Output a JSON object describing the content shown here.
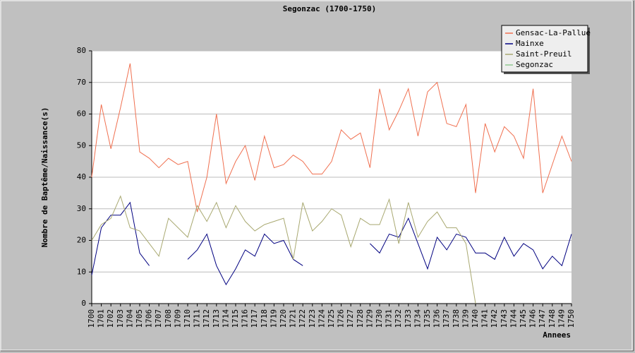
{
  "chart_data": {
    "type": "line",
    "title": "Segonzac (1700-1750)",
    "y_label": "Nombre de Baptême/Naissance(s)",
    "x_label": "Annees",
    "categories": [
      "1700",
      "1701",
      "1702",
      "1703",
      "1704",
      "1705",
      "1706",
      "1707",
      "1708",
      "1709",
      "1710",
      "1711",
      "1712",
      "1713",
      "1714",
      "1715",
      "1716",
      "1717",
      "1718",
      "1719",
      "1720",
      "1721",
      "1722",
      "1723",
      "1724",
      "1725",
      "1726",
      "1727",
      "1728",
      "1729",
      "1730",
      "1731",
      "1732",
      "1733",
      "1734",
      "1735",
      "1736",
      "1737",
      "1738",
      "1739",
      "1740",
      "1741",
      "1742",
      "1743",
      "1744",
      "1745",
      "1746",
      "1747",
      "1748",
      "1749",
      "1750"
    ],
    "series": [
      {
        "name": "Gensac-La-Pallue",
        "color": "#f07050",
        "values": [
          40,
          63,
          49,
          62,
          76,
          48,
          46,
          43,
          46,
          44,
          45,
          29,
          40,
          60,
          38,
          45,
          50,
          39,
          53,
          43,
          44,
          47,
          45,
          41,
          41,
          45,
          55,
          52,
          54,
          43,
          68,
          55,
          61,
          68,
          53,
          67,
          70,
          57,
          56,
          63,
          35,
          57,
          48,
          56,
          53,
          46,
          68,
          35,
          44,
          53,
          45
        ]
      },
      {
        "name": "Mainxe",
        "color": "#000080",
        "values": [
          9,
          24,
          28,
          28,
          32,
          16,
          12,
          null,
          null,
          null,
          14,
          17,
          22,
          12,
          6,
          11,
          17,
          15,
          22,
          19,
          20,
          14,
          12,
          null,
          null,
          null,
          null,
          null,
          null,
          19,
          16,
          22,
          21,
          27,
          19,
          11,
          21,
          17,
          22,
          21,
          16,
          16,
          14,
          21,
          15,
          19,
          17,
          11,
          15,
          12,
          22
        ]
      },
      {
        "name": "Saint-Preuil",
        "color": "#a8a870",
        "values": [
          20,
          25,
          27,
          34,
          24,
          23,
          19,
          15,
          27,
          24,
          21,
          31,
          26,
          32,
          24,
          31,
          26,
          23,
          25,
          26,
          27,
          14,
          32,
          23,
          26,
          30,
          28,
          18,
          27,
          25,
          25,
          33,
          19,
          32,
          21,
          26,
          29,
          24,
          24,
          19,
          0,
          null,
          null,
          null,
          null,
          null,
          null,
          null,
          null,
          null,
          null
        ]
      },
      {
        "name": "Segonzac",
        "color": "#90c890",
        "values": [
          null,
          null,
          null,
          null,
          null,
          null,
          null,
          null,
          null,
          null,
          null,
          null,
          null,
          null,
          null,
          null,
          null,
          null,
          null,
          null,
          null,
          null,
          null,
          null,
          null,
          null,
          null,
          null,
          null,
          null,
          null,
          null,
          null,
          null,
          null,
          null,
          null,
          null,
          null,
          null,
          null,
          null,
          null,
          null,
          null,
          null,
          null,
          null,
          null,
          null,
          null
        ]
      }
    ],
    "ylim": [
      0,
      80
    ],
    "yticks": [
      0,
      10,
      20,
      30,
      40,
      50,
      60,
      70,
      80
    ],
    "grid": true,
    "legend": "top-right"
  }
}
